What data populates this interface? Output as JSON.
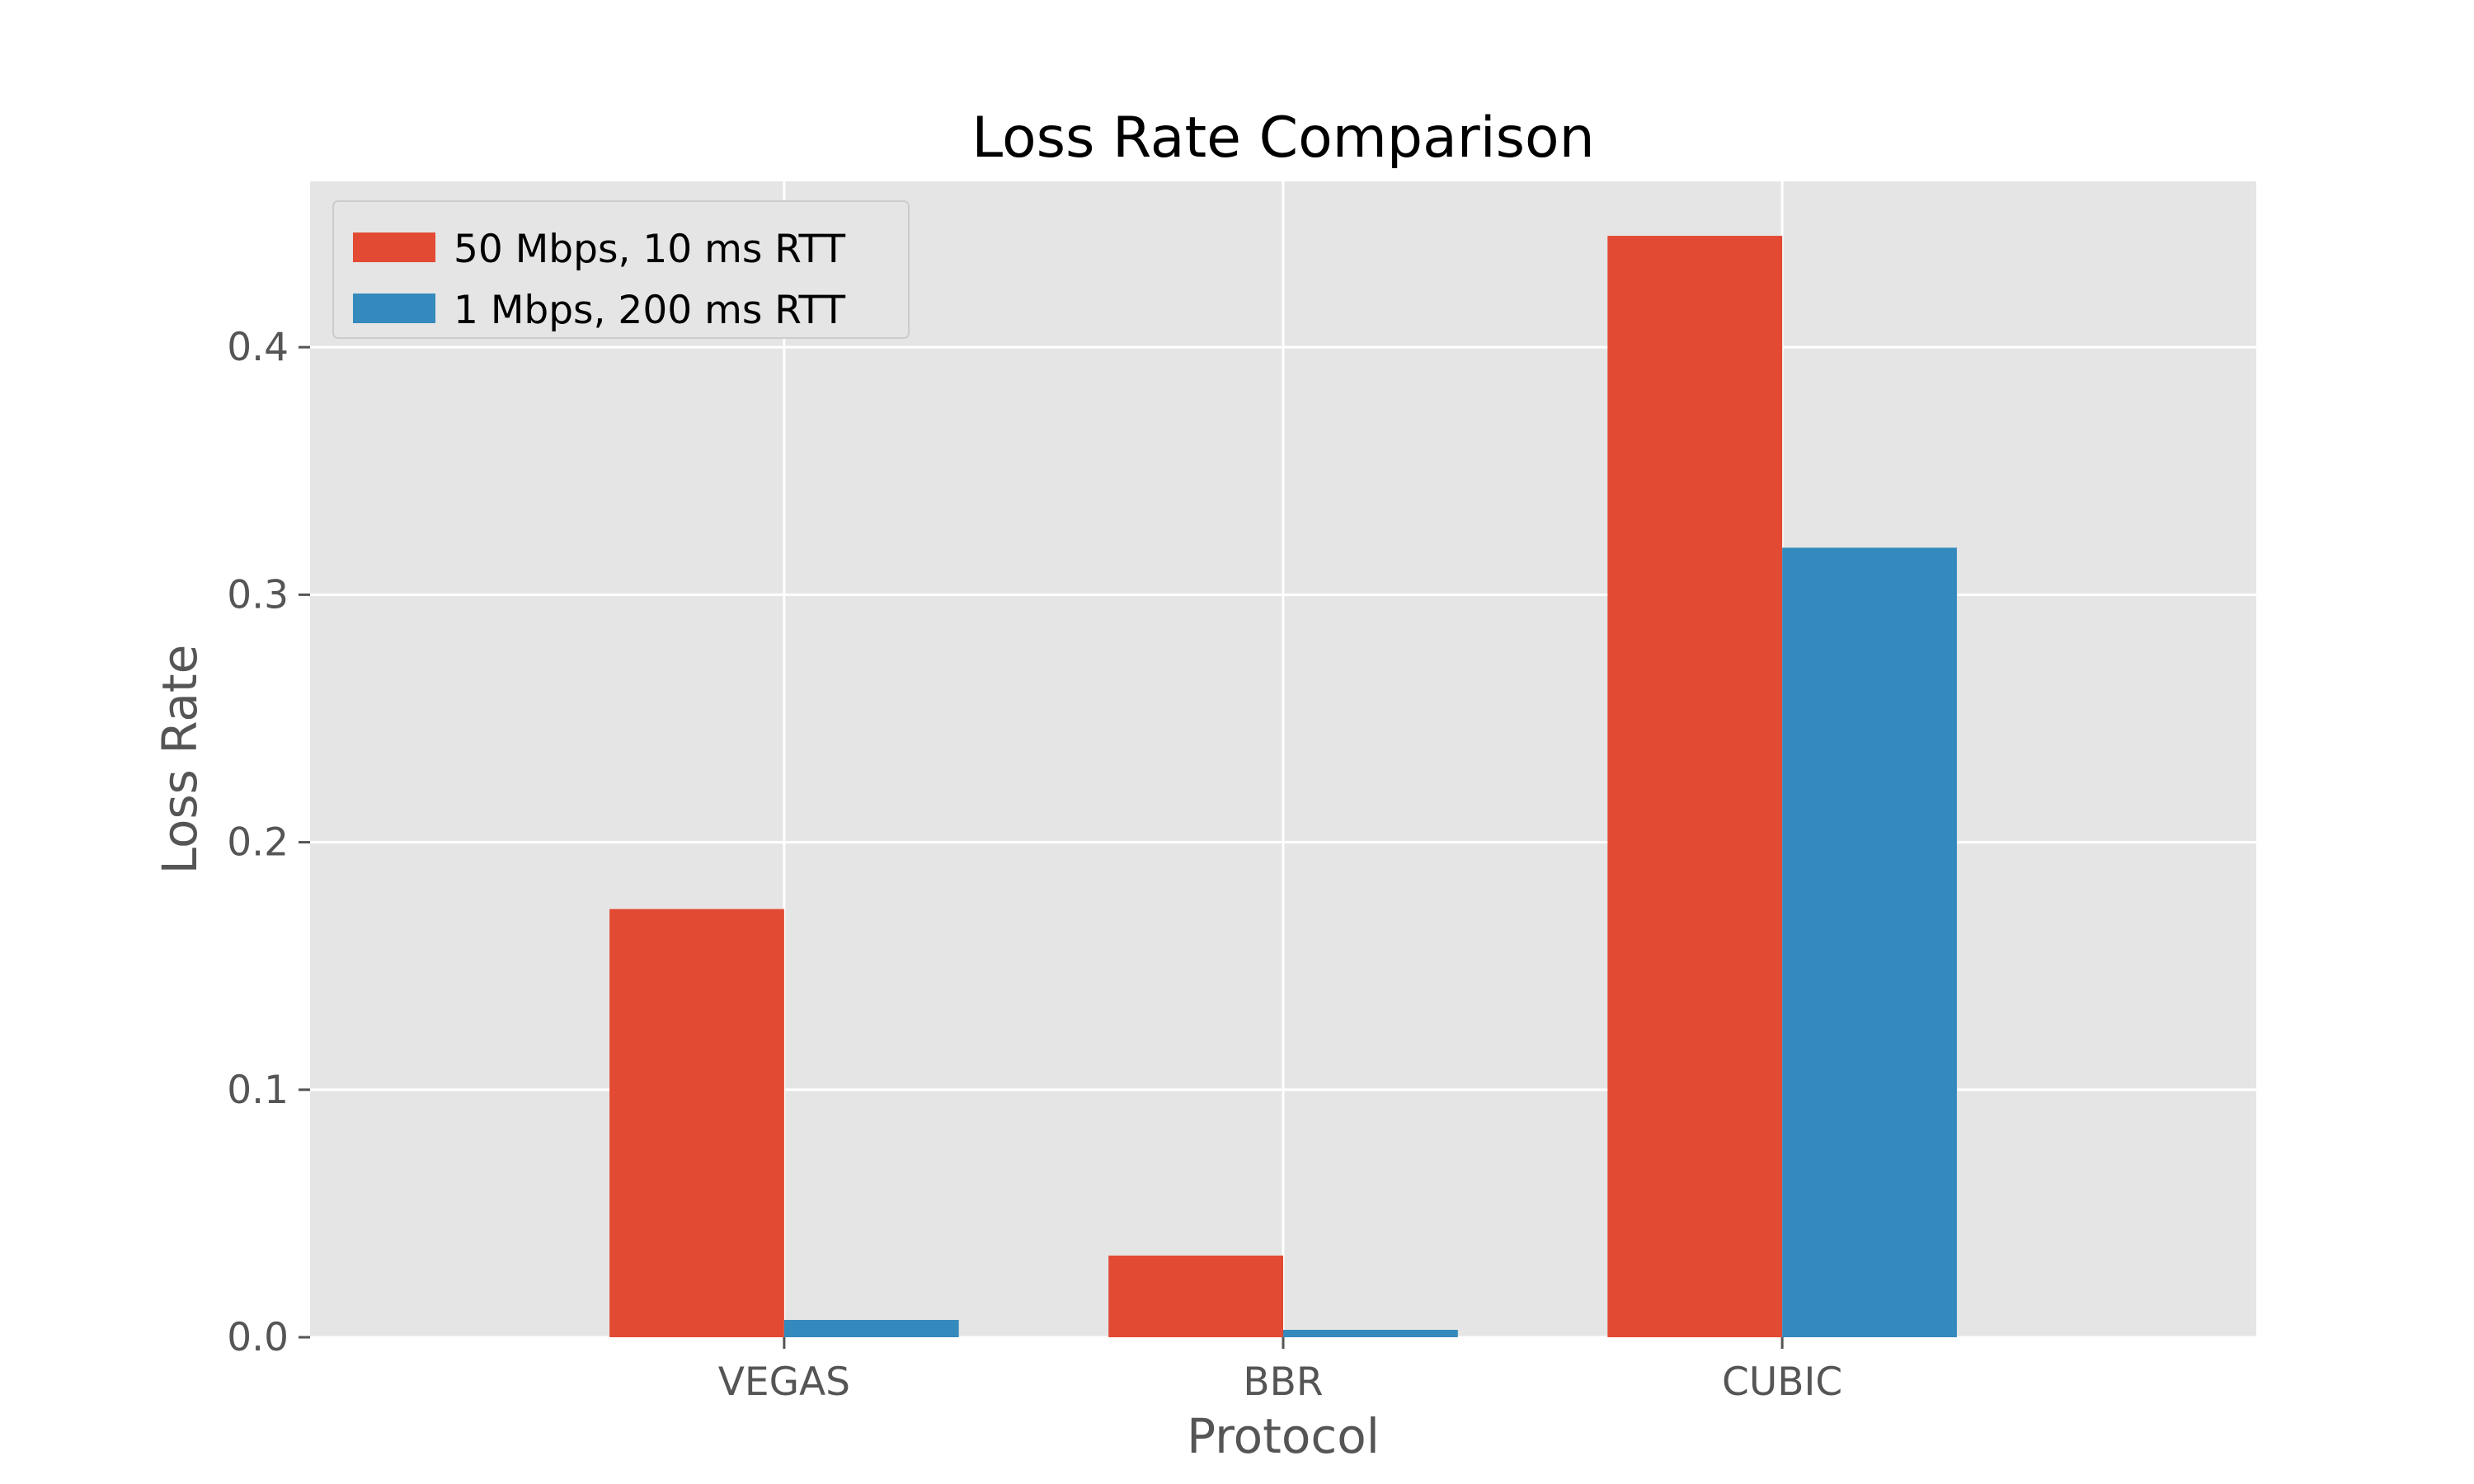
{
  "chart_data": {
    "type": "bar",
    "title": "Loss Rate Comparison",
    "xlabel": "Protocol",
    "ylabel": "Loss Rate",
    "categories": [
      "VEGAS",
      "BBR",
      "CUBIC"
    ],
    "series": [
      {
        "name": "50 Mbps, 10 ms RTT",
        "values": [
          0.173,
          0.033,
          0.445
        ],
        "color": "#E24A33"
      },
      {
        "name": "1 Mbps, 200 ms RTT",
        "values": [
          0.007,
          0.003,
          0.319
        ],
        "color": "#348ABD"
      }
    ],
    "ylim": [
      0,
      0.467
    ],
    "yticks": [
      0.0,
      0.1,
      0.2,
      0.3,
      0.4
    ],
    "ytick_labels": [
      "0.0",
      "0.1",
      "0.2",
      "0.3",
      "0.4"
    ],
    "grid": true,
    "legend_position": "upper-left",
    "colors": {
      "plot_background": "#E5E5E5",
      "grid": "#FFFFFF"
    }
  }
}
